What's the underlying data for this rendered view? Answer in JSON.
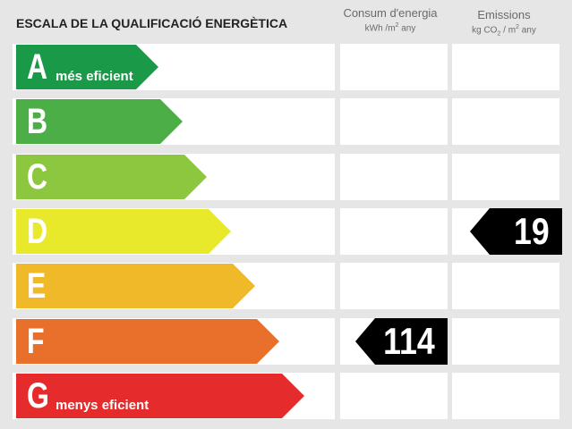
{
  "title": "ESCALA DE LA QUALIFICACIÓ ENERGÈTICA",
  "columns": {
    "consum": {
      "label": "Consum d'energia",
      "unit_a": "kWh /m",
      "unit_sup": "2",
      "unit_b": " any"
    },
    "emissions": {
      "label": "Emissions",
      "unit_a": "kg CO",
      "unit_sub": "2",
      "unit_b": " / m",
      "unit_sup": "2",
      "unit_c": " any"
    }
  },
  "grades": [
    {
      "letter": "A",
      "sublabel": "més eficient",
      "color": "#1a9a48"
    },
    {
      "letter": "B",
      "sublabel": "",
      "color": "#4cae47"
    },
    {
      "letter": "C",
      "sublabel": "",
      "color": "#8dc63f"
    },
    {
      "letter": "D",
      "sublabel": "",
      "color": "#e8e92a"
    },
    {
      "letter": "E",
      "sublabel": "",
      "color": "#f0b929"
    },
    {
      "letter": "F",
      "sublabel": "",
      "color": "#e8702a"
    },
    {
      "letter": "G",
      "sublabel": "menys eficient",
      "color": "#e52b2b"
    }
  ],
  "ratings": {
    "consum": {
      "value": "114",
      "grade": "F"
    },
    "emissions": {
      "value": "19",
      "grade": "D"
    }
  }
}
